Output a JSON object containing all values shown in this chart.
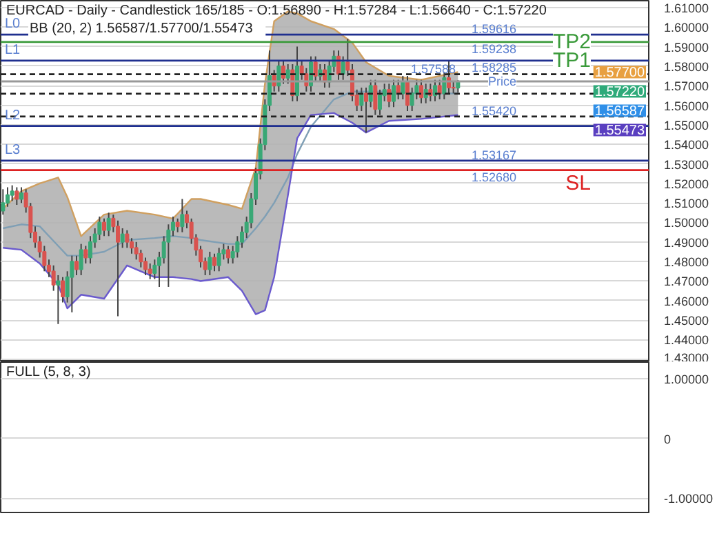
{
  "chart_data": [
    {
      "type": "candlestick",
      "title": "EURCAD - Daily - Candlestick    165/185 - O:1.56890 - H:1.57284 - L:1.56640 - C:1.57220",
      "subtitle": "BB (20, 2)    1.56587/1.57700/1.55473",
      "categories": [
        null,
        null,
        null,
        null,
        null,
        null,
        null,
        null,
        null,
        null,
        null,
        null,
        null,
        null,
        null,
        null,
        null,
        null,
        null,
        null,
        null,
        null,
        null,
        null,
        null,
        null,
        null,
        null,
        null,
        null,
        null,
        null,
        null,
        null,
        null,
        null,
        null,
        null,
        null,
        null,
        null,
        null,
        null,
        null,
        null,
        null,
        null,
        null,
        null,
        null,
        null,
        null,
        null,
        null,
        null,
        null,
        null,
        null,
        null,
        null,
        null,
        null,
        null,
        null,
        null,
        null,
        null,
        null,
        null,
        null,
        null,
        null,
        null,
        null,
        null,
        null,
        null,
        null,
        null,
        null,
        null,
        null,
        null,
        null,
        null,
        null,
        null,
        null,
        null,
        null,
        null,
        null,
        null,
        null,
        null,
        null,
        null,
        null,
        null,
        null
      ],
      "ohlc": [
        [
          1.506,
          1.517,
          1.504,
          1.51
        ],
        [
          1.51,
          1.518,
          1.508,
          1.514
        ],
        [
          1.514,
          1.519,
          1.511,
          1.516
        ],
        [
          1.516,
          1.518,
          1.509,
          1.512
        ],
        [
          1.512,
          1.518,
          1.51,
          1.515
        ],
        [
          1.515,
          1.517,
          1.505,
          1.508
        ],
        [
          1.508,
          1.51,
          1.492,
          1.495
        ],
        [
          1.495,
          1.498,
          1.487,
          1.49
        ],
        [
          1.49,
          1.493,
          1.482,
          1.485
        ],
        [
          1.485,
          1.488,
          1.475,
          1.478
        ],
        [
          1.478,
          1.481,
          1.472,
          1.475
        ],
        [
          1.475,
          1.478,
          1.465,
          1.468
        ],
        [
          1.468,
          1.473,
          1.448,
          1.47
        ],
        [
          1.47,
          1.472,
          1.459,
          1.462
        ],
        [
          1.462,
          1.475,
          1.459,
          1.472
        ],
        [
          1.472,
          1.483,
          1.454,
          1.48
        ],
        [
          1.48,
          1.483,
          1.473,
          1.476
        ],
        [
          1.476,
          1.489,
          1.473,
          1.486
        ],
        [
          1.486,
          1.488,
          1.479,
          1.482
        ],
        [
          1.482,
          1.493,
          1.479,
          1.49
        ],
        [
          1.49,
          1.497,
          1.487,
          1.494
        ],
        [
          1.494,
          1.503,
          1.491,
          1.5
        ],
        [
          1.5,
          1.502,
          1.493,
          1.496
        ],
        [
          1.496,
          1.505,
          1.493,
          1.502
        ],
        [
          1.502,
          1.504,
          1.495,
          1.498
        ],
        [
          1.498,
          1.501,
          1.452,
          1.49
        ],
        [
          1.49,
          1.497,
          1.487,
          1.494
        ],
        [
          1.494,
          1.496,
          1.487,
          1.49
        ],
        [
          1.49,
          1.492,
          1.484,
          1.487
        ],
        [
          1.487,
          1.49,
          1.481,
          1.484
        ],
        [
          1.484,
          1.486,
          1.477,
          1.48
        ],
        [
          1.48,
          1.482,
          1.473,
          1.476
        ],
        [
          1.476,
          1.479,
          1.471,
          1.474
        ],
        [
          1.474,
          1.481,
          1.471,
          1.478
        ],
        [
          1.478,
          1.485,
          1.467,
          1.482
        ],
        [
          1.482,
          1.493,
          1.479,
          1.49
        ],
        [
          1.49,
          1.499,
          1.467,
          1.496
        ],
        [
          1.496,
          1.503,
          1.493,
          1.5
        ],
        [
          1.5,
          1.502,
          1.495,
          1.498
        ],
        [
          1.498,
          1.512,
          1.495,
          1.504
        ],
        [
          1.504,
          1.506,
          1.497,
          1.5
        ],
        [
          1.5,
          1.502,
          1.489,
          1.492
        ],
        [
          1.492,
          1.494,
          1.483,
          1.486
        ],
        [
          1.486,
          1.488,
          1.477,
          1.48
        ],
        [
          1.48,
          1.482,
          1.473,
          1.476
        ],
        [
          1.476,
          1.485,
          1.473,
          1.482
        ],
        [
          1.482,
          1.484,
          1.475,
          1.478
        ],
        [
          1.478,
          1.487,
          1.475,
          1.484
        ],
        [
          1.484,
          1.489,
          1.481,
          1.486
        ],
        [
          1.486,
          1.488,
          1.479,
          1.482
        ],
        [
          1.482,
          1.488,
          1.479,
          1.485
        ],
        [
          1.485,
          1.493,
          1.482,
          1.49
        ],
        [
          1.49,
          1.498,
          1.487,
          1.495
        ],
        [
          1.495,
          1.503,
          1.492,
          1.5
        ],
        [
          1.5,
          1.515,
          1.497,
          1.512
        ],
        [
          1.512,
          1.528,
          1.509,
          1.525
        ],
        [
          1.525,
          1.543,
          1.522,
          1.54
        ],
        [
          1.54,
          1.563,
          1.537,
          1.56
        ],
        [
          1.56,
          1.588,
          1.557,
          1.575
        ],
        [
          1.575,
          1.578,
          1.567,
          1.57
        ],
        [
          1.57,
          1.583,
          1.567,
          1.58
        ],
        [
          1.58,
          1.583,
          1.571,
          1.574
        ],
        [
          1.574,
          1.581,
          1.571,
          1.578
        ],
        [
          1.578,
          1.581,
          1.562,
          1.565
        ],
        [
          1.565,
          1.59,
          1.562,
          1.58
        ],
        [
          1.58,
          1.583,
          1.573,
          1.576
        ],
        [
          1.576,
          1.579,
          1.567,
          1.57
        ],
        [
          1.57,
          1.585,
          1.567,
          1.582
        ],
        [
          1.582,
          1.585,
          1.572,
          1.575
        ],
        [
          1.575,
          1.581,
          1.572,
          1.578
        ],
        [
          1.578,
          1.581,
          1.569,
          1.572
        ],
        [
          1.572,
          1.583,
          1.569,
          1.58
        ],
        [
          1.58,
          1.588,
          1.577,
          1.585
        ],
        [
          1.585,
          1.588,
          1.573,
          1.576
        ],
        [
          1.576,
          1.585,
          1.573,
          1.582
        ],
        [
          1.582,
          1.594,
          1.575,
          1.578
        ],
        [
          1.578,
          1.581,
          1.562,
          1.565
        ],
        [
          1.565,
          1.568,
          1.557,
          1.56
        ],
        [
          1.56,
          1.569,
          1.557,
          1.566
        ],
        [
          1.566,
          1.569,
          1.546,
          1.562
        ],
        [
          1.562,
          1.573,
          1.559,
          1.57
        ],
        [
          1.57,
          1.573,
          1.555,
          1.558
        ],
        [
          1.558,
          1.568,
          1.555,
          1.565
        ],
        [
          1.565,
          1.571,
          1.562,
          1.568
        ],
        [
          1.568,
          1.571,
          1.559,
          1.562
        ],
        [
          1.562,
          1.573,
          1.559,
          1.57
        ],
        [
          1.57,
          1.573,
          1.563,
          1.566
        ],
        [
          1.566,
          1.575,
          1.563,
          1.572
        ],
        [
          1.572,
          1.575,
          1.557,
          1.56
        ],
        [
          1.56,
          1.569,
          1.557,
          1.566
        ],
        [
          1.566,
          1.573,
          1.563,
          1.57
        ],
        [
          1.57,
          1.573,
          1.561,
          1.564
        ],
        [
          1.564,
          1.571,
          1.561,
          1.568
        ],
        [
          1.568,
          1.571,
          1.562,
          1.565
        ],
        [
          1.565,
          1.573,
          1.562,
          1.57
        ],
        [
          1.57,
          1.573,
          1.563,
          1.566
        ],
        [
          1.566,
          1.577,
          1.563,
          1.574
        ],
        [
          1.574,
          1.583,
          1.566,
          1.569
        ],
        [
          1.569,
          1.572,
          1.566,
          1.5689
        ],
        [
          1.5689,
          1.57284,
          1.5664,
          1.5722
        ]
      ],
      "series": [
        {
          "type": "line",
          "color": "#7f9fb5",
          "values": [
            1.497,
            null,
            null,
            null,
            1.499,
            null,
            null,
            null,
            1.498,
            null,
            null,
            null,
            1.488,
            null,
            1.483,
            null,
            null,
            1.483,
            null,
            null,
            null,
            null,
            1.485,
            null,
            null,
            null,
            null,
            1.491,
            null,
            null,
            null,
            null,
            null,
            1.492,
            null,
            null,
            null,
            1.493,
            null,
            null,
            null,
            1.492,
            null,
            1.491,
            null,
            null,
            null,
            null,
            null,
            1.489,
            null,
            null,
            1.489,
            null,
            null,
            1.497,
            null,
            1.503,
            null,
            1.51,
            null,
            null,
            1.523,
            null,
            1.535,
            null,
            null,
            1.549,
            null,
            null,
            null,
            null,
            1.563,
            null,
            null,
            null,
            1.567,
            null,
            null,
            1.567,
            null,
            null,
            null,
            null,
            1.567,
            null,
            null,
            null,
            null,
            null,
            null,
            1.566,
            null,
            null,
            null,
            null,
            null,
            null,
            null,
            1.566
          ],
          "upper": [
            1.507,
            null,
            null,
            null,
            1.516,
            null,
            null,
            null,
            1.52,
            null,
            null,
            null,
            1.523,
            null,
            1.513,
            null,
            null,
            1.493,
            null,
            null,
            null,
            null,
            1.504,
            null,
            null,
            null,
            null,
            1.506,
            null,
            null,
            null,
            null,
            null,
            1.504,
            null,
            null,
            null,
            1.502,
            null,
            null,
            null,
            1.512,
            null,
            1.512,
            null,
            null,
            null,
            null,
            null,
            1.509,
            null,
            null,
            1.507,
            null,
            null,
            1.528,
            null,
            1.571,
            null,
            1.603,
            null,
            null,
            1.608,
            null,
            1.607,
            null,
            null,
            1.603,
            null,
            null,
            null,
            null,
            1.599,
            null,
            null,
            null,
            1.592,
            null,
            null,
            1.582,
            null,
            null,
            null,
            null,
            1.575,
            null,
            null,
            null,
            null,
            null,
            null,
            1.573,
            null,
            null,
            null,
            null,
            null,
            null,
            null,
            1.577
          ],
          "lower": [
            1.487,
            null,
            null,
            null,
            1.486,
            null,
            null,
            null,
            1.479,
            null,
            null,
            null,
            1.468,
            null,
            1.456,
            null,
            null,
            1.463,
            null,
            null,
            null,
            null,
            1.461,
            null,
            null,
            null,
            null,
            1.478,
            null,
            null,
            null,
            null,
            null,
            1.472,
            null,
            null,
            null,
            1.472,
            null,
            null,
            null,
            1.471,
            null,
            1.47,
            null,
            null,
            null,
            null,
            null,
            1.472,
            null,
            null,
            1.465,
            null,
            null,
            1.453,
            null,
            1.455,
            null,
            1.472,
            null,
            null,
            1.514,
            null,
            1.543,
            null,
            null,
            1.555,
            null,
            null,
            null,
            null,
            1.556,
            null,
            null,
            null,
            1.551,
            null,
            null,
            1.546,
            null,
            null,
            null,
            null,
            1.552,
            null,
            null,
            null,
            null,
            null,
            null,
            1.553,
            null,
            null,
            null,
            null,
            null,
            null,
            null,
            1.555
          ]
        },
        {
          "type": "line",
          "color": "#d0a060",
          "values": [
            1.507,
            null,
            null,
            null,
            1.516,
            null,
            null,
            null,
            1.52,
            null,
            null,
            null,
            1.523,
            null,
            1.513,
            null,
            null,
            1.493,
            null,
            null,
            null,
            null,
            1.504,
            null,
            null,
            null,
            null,
            1.506,
            null,
            null,
            null,
            null,
            null,
            1.504,
            null,
            null,
            null,
            1.502,
            null,
            null,
            null,
            1.512,
            null,
            1.512,
            null,
            null,
            null,
            null,
            null,
            1.509,
            null,
            null,
            1.507,
            null,
            null,
            1.528,
            null,
            1.571,
            null,
            1.603,
            null,
            null,
            1.608,
            null,
            1.607,
            null,
            null,
            1.603,
            null,
            null,
            null,
            null,
            1.599,
            null,
            null,
            null,
            1.592,
            null,
            null,
            1.582,
            null,
            null,
            null,
            null,
            1.575,
            null,
            null,
            null,
            null,
            null,
            null,
            1.573,
            null,
            null,
            null,
            null,
            null,
            null,
            null,
            1.577
          ]
        },
        {
          "type": "line",
          "color": "#6a5acd",
          "values": [
            1.487,
            null,
            null,
            null,
            1.486,
            null,
            null,
            null,
            1.479,
            null,
            null,
            null,
            1.468,
            null,
            1.456,
            null,
            null,
            1.463,
            null,
            null,
            null,
            null,
            1.461,
            null,
            null,
            null,
            null,
            1.478,
            null,
            null,
            null,
            null,
            null,
            1.472,
            null,
            null,
            null,
            1.472,
            null,
            null,
            null,
            1.471,
            null,
            1.47,
            null,
            null,
            null,
            null,
            null,
            1.472,
            null,
            null,
            1.465,
            null,
            null,
            1.453,
            null,
            1.455,
            null,
            1.472,
            null,
            null,
            1.514,
            null,
            1.543,
            null,
            null,
            1.555,
            null,
            null,
            null,
            null,
            1.556,
            null,
            null,
            null,
            1.551,
            null,
            null,
            1.546,
            null,
            null,
            null,
            null,
            1.552,
            null,
            null,
            null,
            null,
            null,
            null,
            1.553,
            null,
            null,
            null,
            null,
            null,
            null,
            null,
            1.555
          ]
        }
      ],
      "ylim": [
        1.4285,
        1.6135
      ],
      "yticks": [
        {
          "value": 1.43,
          "label": "1.43000"
        },
        {
          "value": 1.44,
          "label": "1.44000"
        },
        {
          "value": 1.45,
          "label": "1.45000"
        },
        {
          "value": 1.46,
          "label": "1.46000"
        },
        {
          "value": 1.47,
          "label": "1.47000"
        },
        {
          "value": 1.48,
          "label": "1.48000"
        },
        {
          "value": 1.49,
          "label": "1.49000"
        },
        {
          "value": 1.5,
          "label": "1.50000"
        },
        {
          "value": 1.51,
          "label": "1.51000"
        },
        {
          "value": 1.52,
          "label": "1.52000"
        },
        {
          "value": 1.53,
          "label": "1.53000"
        },
        {
          "value": 1.54,
          "label": "1.54000"
        },
        {
          "value": 1.55,
          "label": "1.55000"
        },
        {
          "value": 1.56,
          "label": "1.56000"
        },
        {
          "value": 1.57,
          "label": "1.57000"
        },
        {
          "value": 1.58,
          "label": "1.58000"
        },
        {
          "value": 1.59,
          "label": "1.59000"
        },
        {
          "value": 1.6,
          "label": "1.60000"
        },
        {
          "value": 1.61,
          "label": "1.61000"
        }
      ],
      "ref_lines": [
        {
          "axis": "y",
          "value": 1.59616,
          "label": "1.59616",
          "color": "#1f2f8f",
          "line_style": "solid"
        },
        {
          "axis": "y",
          "value": 1.59238,
          "label": "1.59238",
          "color": "#3a9a3a",
          "line_style": "solid"
        },
        {
          "axis": "y",
          "value": 1.58285,
          "label": "1.58285",
          "color": "#1f2f8f",
          "line_style": "solid"
        },
        {
          "axis": "y",
          "value": 1.57588,
          "label": "1.57588",
          "color": "#222222",
          "line_style": "dashed"
        },
        {
          "axis": "y",
          "value": 1.5722,
          "label": "Price",
          "color": "#999999",
          "line_style": "solid"
        },
        {
          "axis": "y",
          "value": 1.56587,
          "color": "#222222",
          "line_style": "dashed"
        },
        {
          "axis": "y",
          "value": 1.5542,
          "label": "1.55420",
          "color": "#222222",
          "line_style": "dashed"
        },
        {
          "axis": "y",
          "value": 1.5494,
          "color": "#1f2f8f",
          "line_style": "solid"
        },
        {
          "axis": "y",
          "value": 1.53167,
          "label": "1.53167",
          "color": "#1f2f8f",
          "line_style": "solid"
        },
        {
          "axis": "y",
          "value": 1.5268,
          "label": "1.52680",
          "color": "#dd2222",
          "line_style": "solid"
        }
      ],
      "annotations": [
        "L0",
        "L1",
        "L2",
        "L3",
        "TP2",
        "TP1",
        "SL",
        "1.57700",
        "1.57220",
        "1.56587",
        "1.55473"
      ],
      "grid": "y",
      "tick_labels": "y"
    },
    {
      "type": "line",
      "title": "FULL (5, 8, 3)",
      "categories": [
        null,
        null,
        null,
        null,
        null,
        null,
        null,
        null,
        null,
        null,
        null,
        null,
        null,
        null,
        null,
        null,
        null,
        null,
        null,
        null,
        null,
        null,
        null,
        null,
        null,
        null,
        null,
        null,
        null,
        null,
        null,
        null,
        null,
        null,
        null,
        null,
        null,
        null,
        null,
        null,
        null,
        null,
        null,
        null,
        null,
        null,
        null,
        null,
        null,
        null,
        null,
        null,
        null,
        null,
        null,
        null,
        null,
        null,
        null,
        null,
        null,
        null,
        null,
        null,
        null,
        null,
        null,
        null,
        null,
        null,
        null,
        null,
        null,
        null,
        null,
        null,
        null,
        null,
        null,
        null,
        null,
        null,
        null,
        null,
        null,
        null,
        null,
        null,
        null,
        null,
        null,
        null,
        null,
        null,
        null,
        null,
        null,
        null,
        null,
        null
      ],
      "ylim": [
        -1.26,
        1.28
      ],
      "yticks": [
        {
          "value": 1,
          "label": "1.00000"
        },
        0,
        {
          "value": -1,
          "label": "-1.00000"
        }
      ],
      "grid": "y",
      "tick_labels": "y"
    }
  ]
}
